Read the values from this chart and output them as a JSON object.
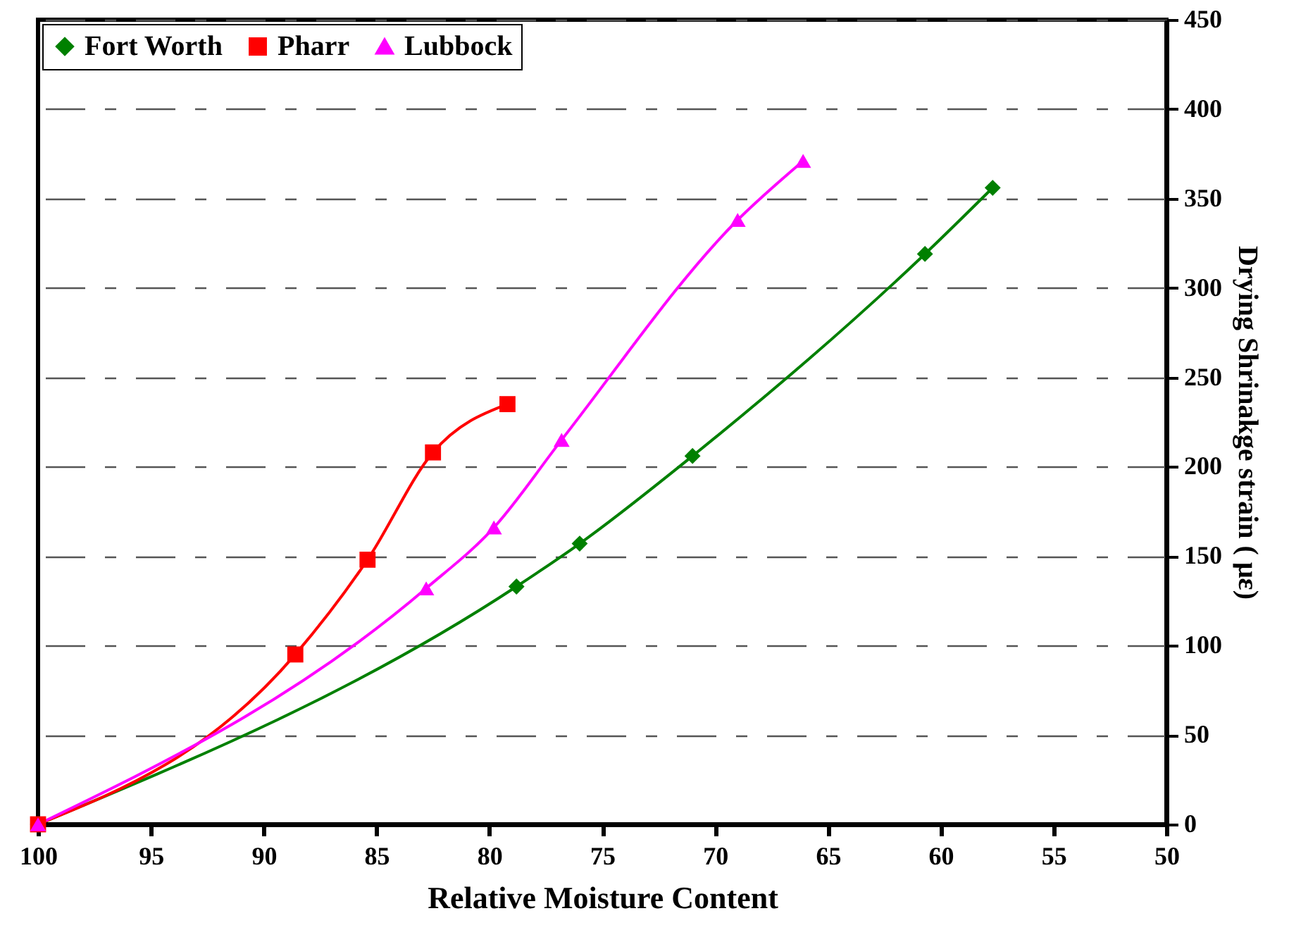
{
  "chart_data": {
    "type": "line",
    "xlabel": "Relative Moisture Content",
    "ylabel": "Drying Shrinakge strain ( με)",
    "xlim": [
      100,
      50
    ],
    "xticks": [
      100,
      95,
      90,
      85,
      80,
      75,
      70,
      65,
      60,
      55,
      50
    ],
    "ylim": [
      0,
      450
    ],
    "yticks": [
      0,
      50,
      100,
      150,
      200,
      250,
      300,
      350,
      400,
      450
    ],
    "grid": "y",
    "legend": "top left",
    "line_style": "solid",
    "series": [
      {
        "name": "Fort Worth",
        "color": "#008000",
        "marker": "diamond",
        "x": [
          100,
          78.8,
          76.0,
          71.0,
          60.7,
          57.7
        ],
        "values": [
          0,
          133,
          157,
          206,
          319,
          356
        ]
      },
      {
        "name": "Pharr",
        "color": "#ff0000",
        "marker": "square",
        "x": [
          100,
          88.6,
          85.4,
          82.5,
          79.2
        ],
        "values": [
          0,
          95,
          148,
          208,
          235
        ]
      },
      {
        "name": "Lubbock",
        "color": "#ff00ff",
        "marker": "triangle",
        "x": [
          100,
          82.8,
          79.8,
          76.8,
          69.0,
          66.1
        ],
        "values": [
          0,
          132,
          166,
          215,
          338,
          371
        ]
      }
    ]
  }
}
